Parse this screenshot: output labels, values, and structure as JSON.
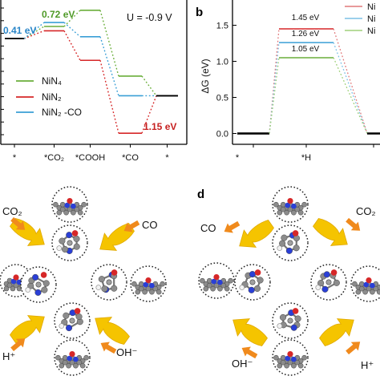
{
  "colors": {
    "NiN4": "#6aae3a",
    "NiN2": "#d62728",
    "NiN2_CO": "#3a9fd6",
    "arrow_yellow": "#f5c400",
    "arrow_orange": "#f08a1c",
    "atom_grey": "#8c8c8c",
    "atom_blue": "#2a3fd6",
    "atom_red": "#d62728",
    "atom_white": "#f2f2f2"
  },
  "panel_a": {
    "annotation": "U = -0.9 V",
    "value_labels": [
      "0.41 eV",
      "0.72 eV",
      "1.15 eV"
    ],
    "legend": [
      "NiN₄",
      "NiN₂",
      "NiN₂ -CO"
    ]
  },
  "panel_b": {
    "letter": "b",
    "legend": [
      "Ni",
      "Ni",
      "Ni"
    ],
    "value_labels": [
      "1.45 eV",
      "1.26 eV",
      "1.05 eV"
    ]
  },
  "chart_data": [
    {
      "type": "line",
      "x": [
        "*",
        "*CO₂",
        "*COOH",
        "*CO",
        "*"
      ],
      "annotation": "U = -0.9 V",
      "series": [
        {
          "name": "NiN₄",
          "values": [
            0.0,
            0.31,
            0.72,
            -0.95,
            -1.45
          ]
        },
        {
          "name": "NiN₂",
          "values": [
            0.0,
            0.2,
            -0.55,
            -2.4,
            -1.45
          ]
        },
        {
          "name": "NiN₂ -CO",
          "values": [
            0.0,
            0.41,
            0.05,
            -1.45,
            -1.45
          ]
        }
      ],
      "labels": [
        "0.41 eV",
        "0.72 eV",
        "1.15 eV"
      ],
      "ylim": [
        -2.6,
        0.9
      ]
    },
    {
      "type": "line",
      "x": [
        "*",
        "*H",
        "*"
      ],
      "ylabel": "ΔG (eV)",
      "yticks": [
        "0.0",
        "0.5",
        "1.0",
        "1.5"
      ],
      "series": [
        {
          "name": "Ni",
          "values": [
            0.0,
            1.45,
            0.0
          ]
        },
        {
          "name": "Ni",
          "values": [
            0.0,
            1.26,
            0.0
          ]
        },
        {
          "name": "Ni",
          "values": [
            0.0,
            1.05,
            0.0
          ]
        }
      ],
      "labels": [
        "1.45 eV",
        "1.26 eV",
        "1.05 eV"
      ],
      "ylim": [
        -0.15,
        1.85
      ]
    }
  ],
  "panel_c": {
    "labels": [
      "CO₂",
      "CO",
      "H⁺",
      "OH⁻"
    ]
  },
  "panel_d": {
    "letter": "d",
    "labels": [
      "CO",
      "CO₂",
      "OH⁻",
      "H⁺"
    ]
  }
}
